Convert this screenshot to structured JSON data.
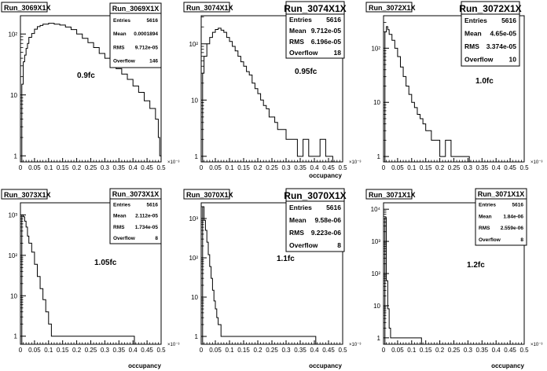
{
  "chart_data": [
    {
      "type": "step-histogram",
      "title": "Run_3069X1X",
      "annotation": "0.9fc",
      "xlabel": "",
      "x_exponent_label": "×10⁻³",
      "yscale": "log",
      "y_tick_labels": [
        "1",
        "10",
        "10²"
      ],
      "x_tick_labels": [
        "0",
        "0.05",
        "0.1",
        "0.15",
        "0.2",
        "0.25",
        "0.3",
        "0.35",
        "0.4",
        "0.45",
        "0.5"
      ],
      "xlim": [
        0,
        0.5
      ],
      "ylim_log10": [
        -0.1,
        2.3
      ],
      "stats": {
        "name": "Run_3069X1X",
        "entries": "5616",
        "mean": "0.0001894",
        "rms": "9.712e-05",
        "overflow": "146"
      },
      "points": [
        [
          0.005,
          15
        ],
        [
          0.01,
          35
        ],
        [
          0.015,
          45
        ],
        [
          0.02,
          58
        ],
        [
          0.025,
          70
        ],
        [
          0.03,
          88
        ],
        [
          0.04,
          102
        ],
        [
          0.05,
          120
        ],
        [
          0.06,
          132
        ],
        [
          0.07,
          138
        ],
        [
          0.08,
          145
        ],
        [
          0.1,
          150
        ],
        [
          0.12,
          145
        ],
        [
          0.14,
          140
        ],
        [
          0.16,
          130
        ],
        [
          0.18,
          118
        ],
        [
          0.2,
          100
        ],
        [
          0.22,
          85
        ],
        [
          0.24,
          72
        ],
        [
          0.26,
          60
        ],
        [
          0.28,
          48
        ],
        [
          0.3,
          40
        ],
        [
          0.32,
          32
        ],
        [
          0.34,
          27
        ],
        [
          0.36,
          22
        ],
        [
          0.38,
          18
        ],
        [
          0.4,
          14
        ],
        [
          0.42,
          11
        ],
        [
          0.44,
          8
        ],
        [
          0.46,
          6
        ],
        [
          0.48,
          4
        ],
        [
          0.49,
          2
        ],
        [
          0.495,
          1
        ]
      ]
    },
    {
      "type": "step-histogram",
      "title": "Run_3074X1X",
      "annotation": "0.95fc",
      "xlabel": "occupancy",
      "x_exponent_label": "×10⁻³",
      "yscale": "log",
      "y_tick_labels": [
        "1",
        "10",
        "10²"
      ],
      "x_tick_labels": [
        "0",
        "0.05",
        "0.1",
        "0.15",
        "0.2",
        "0.25",
        "0.3",
        "0.35",
        "0.4",
        "0.45",
        "0.5"
      ],
      "xlim": [
        0,
        0.5
      ],
      "ylim_log10": [
        -0.1,
        2.5
      ],
      "stats": {
        "name": "Run_3074X1X",
        "entries": "5616",
        "mean": "9.712e-05",
        "rms": "6.196e-05",
        "overflow": "18"
      },
      "points": [
        [
          0.005,
          30
        ],
        [
          0.01,
          60
        ],
        [
          0.02,
          100
        ],
        [
          0.03,
          130
        ],
        [
          0.04,
          160
        ],
        [
          0.05,
          180
        ],
        [
          0.06,
          190
        ],
        [
          0.07,
          175
        ],
        [
          0.08,
          160
        ],
        [
          0.09,
          130
        ],
        [
          0.1,
          110
        ],
        [
          0.11,
          90
        ],
        [
          0.12,
          75
        ],
        [
          0.13,
          60
        ],
        [
          0.14,
          48
        ],
        [
          0.15,
          40
        ],
        [
          0.16,
          32
        ],
        [
          0.17,
          28
        ],
        [
          0.18,
          20
        ],
        [
          0.19,
          16
        ],
        [
          0.2,
          13
        ],
        [
          0.21,
          10
        ],
        [
          0.22,
          8
        ],
        [
          0.23,
          7
        ],
        [
          0.24,
          5
        ],
        [
          0.25,
          5
        ],
        [
          0.26,
          4
        ],
        [
          0.27,
          3
        ],
        [
          0.28,
          3
        ],
        [
          0.3,
          2
        ],
        [
          0.32,
          2
        ],
        [
          0.34,
          1
        ],
        [
          0.36,
          2
        ],
        [
          0.38,
          1
        ],
        [
          0.4,
          1
        ],
        [
          0.42,
          2
        ],
        [
          0.44,
          1
        ],
        [
          0.46,
          1
        ]
      ]
    },
    {
      "type": "step-histogram",
      "title": "Run_3072X1X",
      "annotation": "1.0fc",
      "xlabel": "",
      "x_exponent_label": "×10⁻³",
      "yscale": "log",
      "y_tick_labels": [
        "1",
        "10",
        "10²"
      ],
      "x_tick_labels": [
        "0",
        "0.05",
        "0.1",
        "0.15",
        "0.2",
        "0.25",
        "0.3",
        "0.35",
        "0.4",
        "0.45",
        "0.5"
      ],
      "xlim": [
        0,
        0.5
      ],
      "ylim_log10": [
        -0.1,
        2.6
      ],
      "stats": {
        "name": "Run_3072X1X",
        "entries": "5616",
        "mean": "4.65e-05",
        "rms": "3.374e-05",
        "overflow": "10"
      },
      "points": [
        [
          0.005,
          200
        ],
        [
          0.01,
          250
        ],
        [
          0.015,
          220
        ],
        [
          0.02,
          180
        ],
        [
          0.03,
          140
        ],
        [
          0.04,
          100
        ],
        [
          0.05,
          70
        ],
        [
          0.06,
          45
        ],
        [
          0.07,
          30
        ],
        [
          0.08,
          20
        ],
        [
          0.09,
          14
        ],
        [
          0.1,
          10
        ],
        [
          0.11,
          8
        ],
        [
          0.12,
          6
        ],
        [
          0.13,
          5
        ],
        [
          0.14,
          4
        ],
        [
          0.15,
          3
        ],
        [
          0.16,
          3
        ],
        [
          0.17,
          2
        ],
        [
          0.18,
          2
        ],
        [
          0.2,
          1
        ],
        [
          0.22,
          2
        ],
        [
          0.24,
          1
        ],
        [
          0.26,
          1
        ],
        [
          0.28,
          1
        ],
        [
          0.3,
          1
        ]
      ]
    },
    {
      "type": "step-histogram",
      "title": "Run_3073X1X",
      "annotation": "1.05fc",
      "xlabel": "occupancy",
      "x_exponent_label": "×10⁻³",
      "yscale": "log",
      "y_tick_labels": [
        "1",
        "10",
        "10²",
        "10³"
      ],
      "x_tick_labels": [
        "0",
        "0.05",
        "0.1",
        "0.15",
        "0.2",
        "0.25",
        "0.3",
        "0.35",
        "0.4",
        "0.45",
        "0.5"
      ],
      "xlim": [
        0,
        0.5
      ],
      "ylim_log10": [
        -0.2,
        3.3
      ],
      "stats": {
        "name": "Run_3073X1X",
        "entries": "5616",
        "mean": "2.112e-05",
        "rms": "1.734e-05",
        "overflow": "8"
      },
      "points": [
        [
          0.005,
          1000
        ],
        [
          0.01,
          900
        ],
        [
          0.015,
          700
        ],
        [
          0.02,
          500
        ],
        [
          0.025,
          300
        ],
        [
          0.03,
          200
        ],
        [
          0.04,
          120
        ],
        [
          0.05,
          60
        ],
        [
          0.06,
          30
        ],
        [
          0.07,
          15
        ],
        [
          0.08,
          8
        ],
        [
          0.09,
          4
        ],
        [
          0.1,
          2
        ],
        [
          0.11,
          1
        ],
        [
          0.12,
          1
        ],
        [
          0.25,
          1
        ],
        [
          0.26,
          1
        ],
        [
          0.4,
          1
        ]
      ]
    },
    {
      "type": "step-histogram",
      "title": "Run_3070X1X",
      "annotation": "1.1fc",
      "xlabel": "occupancy",
      "x_exponent_label": "×10⁻³",
      "yscale": "log",
      "y_tick_labels": [
        "1",
        "10",
        "10²",
        "10³"
      ],
      "x_tick_labels": [
        "0",
        "0.05",
        "0.1",
        "0.15",
        "0.2",
        "0.25",
        "0.3",
        "0.35",
        "0.4",
        "0.45",
        "0.5"
      ],
      "xlim": [
        0,
        0.5
      ],
      "ylim_log10": [
        -0.2,
        3.4
      ],
      "stats": {
        "name": "Run_3070X1X",
        "entries": "5616",
        "mean": "9.58e-06",
        "rms": "9.223e-06",
        "overflow": "8"
      },
      "points": [
        [
          0.005,
          2000
        ],
        [
          0.01,
          900
        ],
        [
          0.015,
          500
        ],
        [
          0.02,
          250
        ],
        [
          0.025,
          120
        ],
        [
          0.03,
          60
        ],
        [
          0.035,
          30
        ],
        [
          0.04,
          15
        ],
        [
          0.045,
          8
        ],
        [
          0.05,
          5
        ],
        [
          0.055,
          3
        ],
        [
          0.06,
          2
        ],
        [
          0.07,
          1
        ],
        [
          0.08,
          1
        ],
        [
          0.12,
          1
        ],
        [
          0.27,
          1
        ],
        [
          0.3,
          1
        ],
        [
          0.4,
          1
        ]
      ]
    },
    {
      "type": "step-histogram",
      "title": "Run_3071X1X",
      "annotation": "1.2fc",
      "xlabel": "occupancy",
      "x_exponent_label": "×10⁻³",
      "yscale": "log",
      "y_tick_labels": [
        "1",
        "10",
        "10²",
        "10³",
        "10⁴"
      ],
      "x_tick_labels": [
        "0",
        "0.05",
        "0.1",
        "0.15",
        "0.2",
        "0.25",
        "0.3",
        "0.35",
        "0.4",
        "0.45",
        "0.5"
      ],
      "xlim": [
        0,
        0.5
      ],
      "ylim_log10": [
        -0.2,
        4.2
      ],
      "stats": {
        "name": "Run_3071X1X",
        "entries": "5616",
        "mean": "1.84e-06",
        "rms": "2.559e-06",
        "overflow": "8"
      },
      "points": [
        [
          0.005,
          5500
        ],
        [
          0.01,
          60
        ],
        [
          0.015,
          8
        ],
        [
          0.02,
          2
        ],
        [
          0.025,
          1
        ],
        [
          0.03,
          1
        ],
        [
          0.1,
          1
        ],
        [
          0.13,
          1
        ]
      ]
    }
  ],
  "stats_labels": {
    "entries": "Entries",
    "mean": "Mean",
    "rms": "RMS",
    "overflow": "Overflow"
  }
}
